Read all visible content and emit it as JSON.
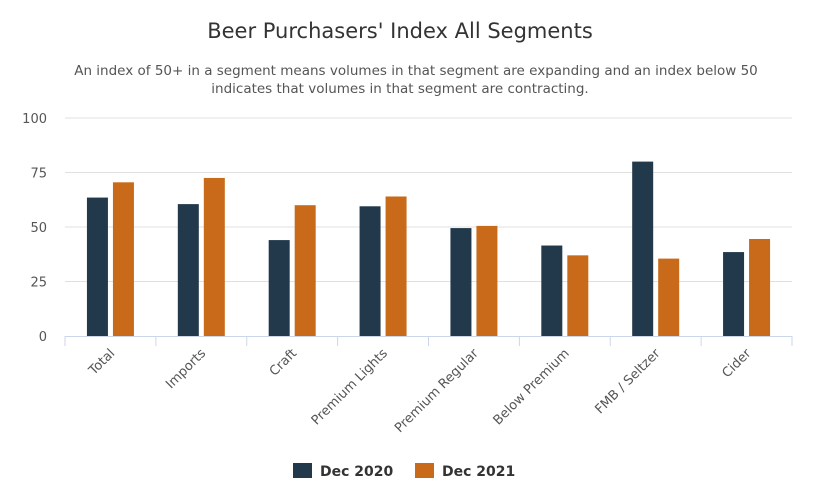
{
  "chart_data": {
    "type": "bar",
    "title": "Beer Purchasers' Index All Segments",
    "subtitle_lines": [
      "An index of 50+ in a segment means volumes in that segment are expanding and an index below 50",
      "indicates that volumes in that segment are contracting."
    ],
    "categories": [
      "Total",
      "Imports",
      "Craft",
      "Premium Lights",
      "Premium Regular",
      "Below Premium",
      "FMB / Seltzer",
      "Cider"
    ],
    "series": [
      {
        "name": "Dec 2020",
        "color": "#22384b",
        "values": [
          63.5,
          60.5,
          44,
          59.5,
          49.5,
          41.5,
          80,
          38.5
        ]
      },
      {
        "name": "Dec 2021",
        "color": "#c86a1a",
        "values": [
          70.5,
          72.5,
          60,
          64,
          50.5,
          37,
          35.5,
          44.5
        ]
      }
    ],
    "ylim": [
      0,
      100
    ],
    "yticks": [
      0,
      25,
      50,
      75,
      100
    ],
    "grid": true,
    "legend_position": "bottom-center"
  }
}
